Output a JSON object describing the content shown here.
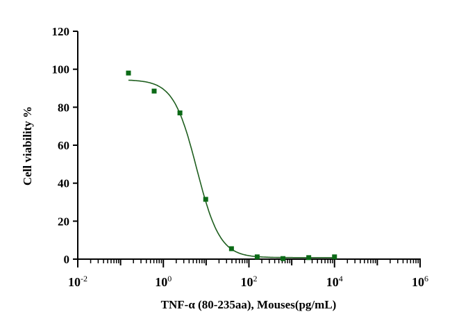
{
  "chart_data": {
    "type": "scatter",
    "title": "",
    "xlabel": "TNF-α (80-235aa), Mouses(pg/mL)",
    "ylabel": "Cell viability %",
    "xscale": "log10",
    "xlim_log10": [
      -2,
      6
    ],
    "ylim": [
      0,
      120
    ],
    "yticks": [
      0,
      20,
      40,
      60,
      80,
      100,
      120
    ],
    "xtick_labels": [
      {
        "base": "10",
        "exp": "-2",
        "log10": -2
      },
      {
        "base": "10",
        "exp": "0",
        "log10": 0
      },
      {
        "base": "10",
        "exp": "2",
        "log10": 2
      },
      {
        "base": "10",
        "exp": "4",
        "log10": 4
      },
      {
        "base": "10",
        "exp": "6",
        "log10": 6
      }
    ],
    "grid": false,
    "color": "#0b6a16",
    "curve_color": "#1e5e1e",
    "series": [
      {
        "name": "Cell viability",
        "x": [
          0.153,
          0.61,
          2.44,
          9.77,
          39.1,
          156,
          625,
          2500,
          10000
        ],
        "y": [
          98,
          88.5,
          77,
          31.5,
          5.5,
          1.2,
          0.3,
          0.8,
          1.2
        ]
      }
    ],
    "fit": {
      "model": "4PL",
      "top": 94.5,
      "bottom": 0.8,
      "log_ic50": 0.78,
      "hill": 1.6,
      "x_range": [
        0.153,
        10000
      ]
    }
  }
}
